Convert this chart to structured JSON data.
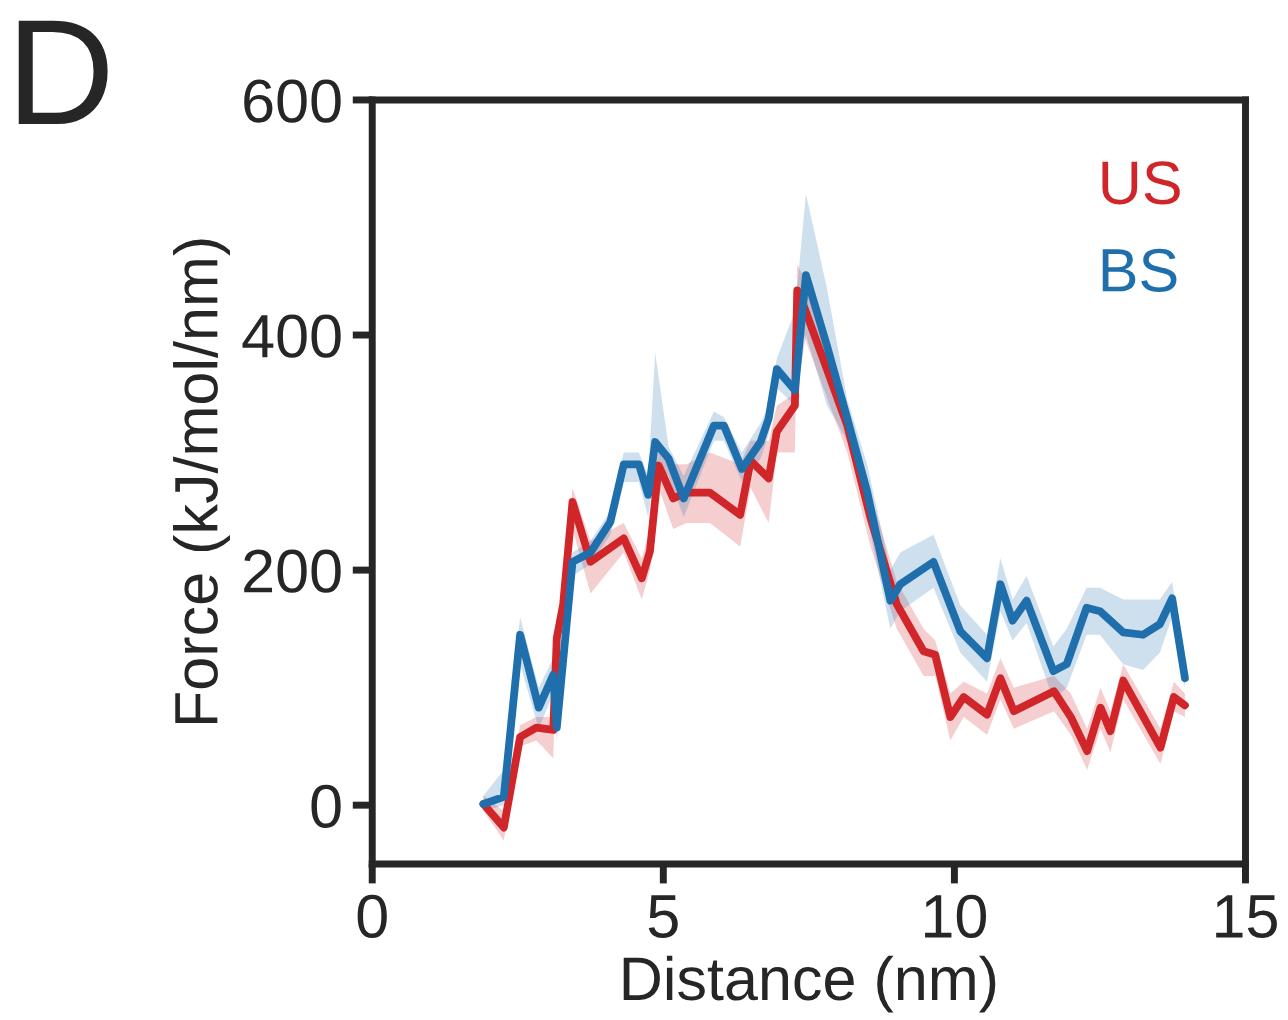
{
  "chart_data": {
    "type": "line",
    "xlabel": "Distance (nm)",
    "ylabel": "Force (kJ/mol/nm)",
    "annotations": [
      "D"
    ],
    "xlim": [
      0,
      15
    ],
    "xticks": [
      0,
      5,
      10,
      15
    ],
    "ylim": [
      -50,
      600
    ],
    "yticks": [
      0,
      200,
      400,
      600
    ],
    "grid": false,
    "legend": "top right",
    "marker": "none",
    "line_style": "solid",
    "series": [
      {
        "name": "US",
        "color": "#d0262a",
        "x": [
          1.91,
          2.26,
          2.54,
          2.82,
          3.11,
          3.17,
          3.28,
          3.44,
          3.75,
          4.32,
          4.63,
          4.77,
          4.92,
          5.17,
          5.4,
          5.8,
          6.32,
          6.5,
          6.81,
          6.95,
          7.26,
          7.3,
          7.41,
          7.75,
          8.16,
          8.56,
          9.01,
          9.47,
          9.67,
          9.93,
          10.16,
          10.56,
          10.79,
          11.02,
          11.71,
          12.0,
          12.28,
          12.51,
          12.68,
          12.9,
          13.54,
          13.77,
          13.96
        ],
        "values": [
          1,
          -19,
          58,
          66,
          64,
          142,
          171,
          258,
          207,
          227,
          193,
          216,
          289,
          261,
          266,
          266,
          247,
          293,
          278,
          318,
          340,
          438,
          425,
          379,
          323,
          244,
          171,
          131,
          128,
          75,
          92,
          77,
          108,
          80,
          97,
          75,
          46,
          83,
          63,
          106,
          49,
          92,
          85
        ],
        "lower": [
          -5,
          -30,
          50,
          55,
          40,
          130,
          160,
          235,
          180,
          215,
          175,
          200,
          270,
          235,
          240,
          240,
          220,
          270,
          240,
          300,
          300,
          420,
          400,
          355,
          300,
          220,
          150,
          110,
          110,
          55,
          75,
          60,
          90,
          65,
          80,
          60,
          30,
          65,
          45,
          90,
          35,
          80,
          75
        ],
        "upper": [
          8,
          -5,
          68,
          75,
          75,
          150,
          185,
          270,
          225,
          240,
          210,
          235,
          305,
          290,
          290,
          300,
          290,
          310,
          310,
          340,
          350,
          460,
          450,
          400,
          340,
          265,
          190,
          150,
          140,
          95,
          105,
          95,
          125,
          100,
          110,
          95,
          65,
          100,
          80,
          120,
          65,
          105,
          95
        ]
      },
      {
        "name": "BS",
        "color": "#1f6fad",
        "x": [
          1.91,
          2.26,
          2.54,
          2.86,
          3.11,
          3.17,
          3.44,
          3.75,
          4.09,
          4.32,
          4.58,
          4.74,
          4.86,
          5.09,
          5.35,
          5.87,
          6.04,
          6.35,
          6.67,
          6.81,
          6.95,
          7.26,
          7.45,
          7.81,
          8.16,
          8.5,
          8.9,
          9.07,
          9.64,
          10.1,
          10.56,
          10.79,
          11.0,
          11.24,
          11.7,
          11.93,
          12.27,
          12.5,
          12.9,
          13.24,
          13.53,
          13.74,
          13.96
        ],
        "values": [
          1,
          7,
          145,
          83,
          111,
          66,
          207,
          215,
          241,
          290,
          290,
          264,
          309,
          295,
          261,
          323,
          323,
          286,
          309,
          329,
          371,
          353,
          451,
          391,
          329,
          267,
          174,
          188,
          207,
          148,
          125,
          188,
          157,
          174,
          114,
          120,
          168,
          165,
          147,
          145,
          154,
          176,
          108
        ],
        "lower": [
          -5,
          0,
          120,
          65,
          95,
          55,
          195,
          205,
          230,
          275,
          275,
          245,
          290,
          280,
          245,
          310,
          310,
          275,
          295,
          315,
          355,
          340,
          400,
          340,
          310,
          245,
          150,
          165,
          185,
          130,
          105,
          165,
          140,
          155,
          90,
          100,
          145,
          145,
          120,
          115,
          130,
          160,
          100
        ],
        "upper": [
          8,
          30,
          160,
          100,
          125,
          80,
          215,
          225,
          250,
          300,
          300,
          280,
          385,
          305,
          280,
          335,
          330,
          300,
          325,
          340,
          380,
          420,
          520,
          440,
          345,
          290,
          200,
          215,
          230,
          170,
          145,
          210,
          175,
          195,
          135,
          150,
          185,
          185,
          175,
          175,
          175,
          190,
          120
        ]
      }
    ]
  }
}
